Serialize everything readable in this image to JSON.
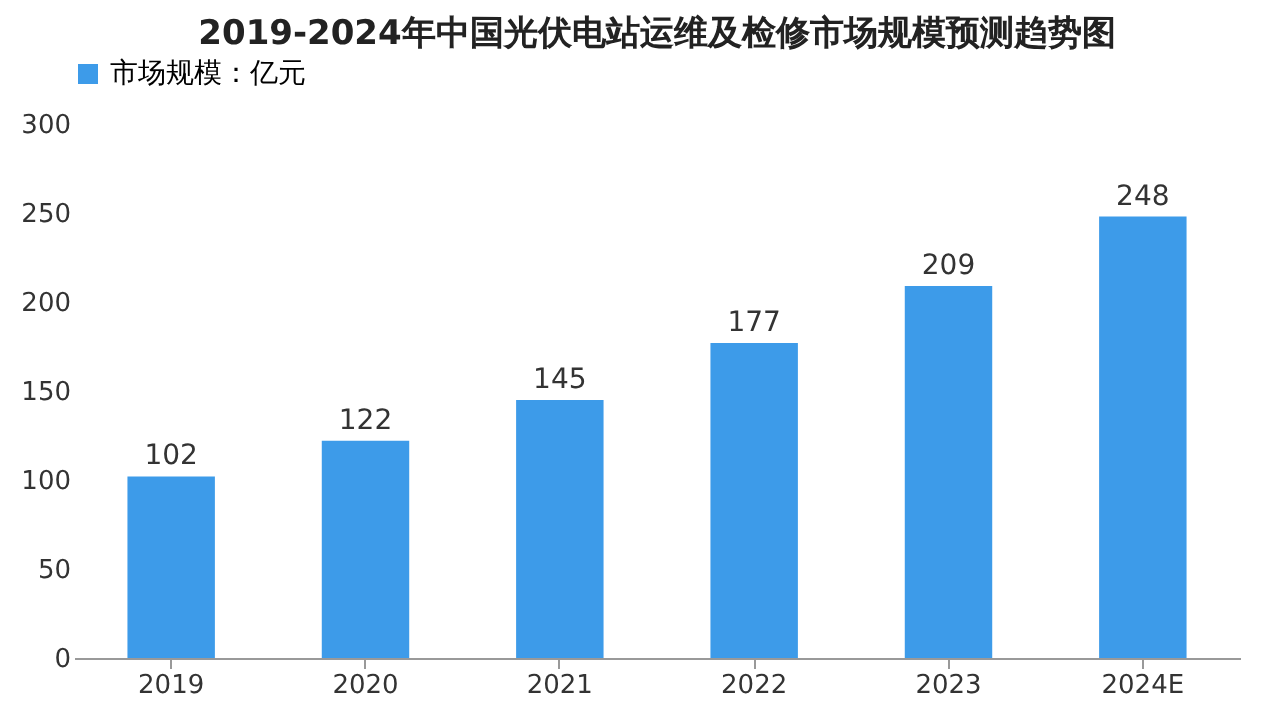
{
  "chart_data": {
    "type": "bar",
    "title": "2019-2024年中国光伏电站运维及检修市场规模预测趋势图",
    "categories": [
      "2019",
      "2020",
      "2021",
      "2022",
      "2023",
      "2024E"
    ],
    "series": [
      {
        "name": "市场规模：亿元",
        "color": "#3d9be9",
        "values": [
          102,
          122,
          145,
          177,
          209,
          248
        ]
      }
    ],
    "ylim": [
      0,
      300
    ],
    "yticks": [
      0,
      50,
      100,
      150,
      200,
      250,
      300
    ],
    "data_labels": true,
    "legend": "top",
    "grid": false
  }
}
